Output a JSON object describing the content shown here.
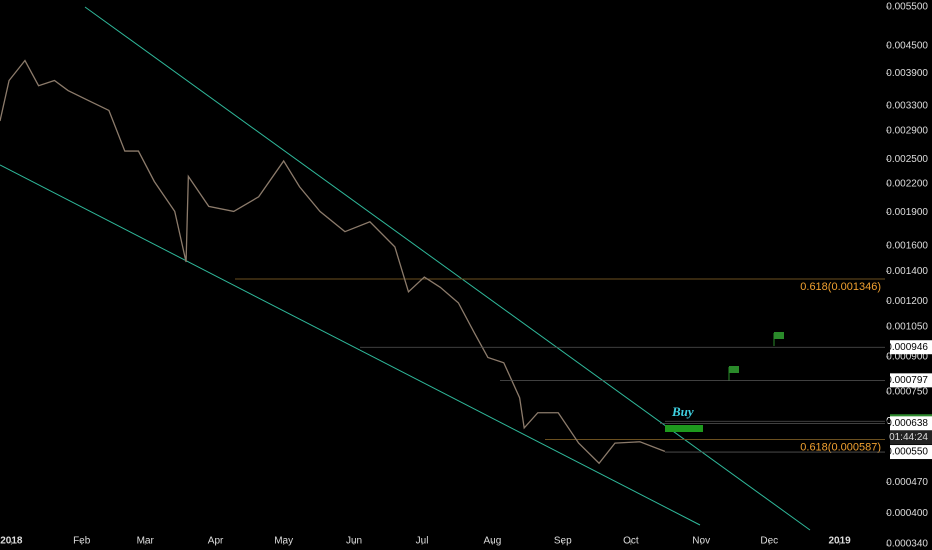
{
  "chart_data": {
    "type": "line",
    "log_scale": true,
    "xlim": [
      -5,
      385
    ],
    "ylim": [
      0.00034,
      0.0055
    ],
    "xticks": [
      {
        "value": 0,
        "label": "2018"
      },
      {
        "value": 31,
        "label": "Feb"
      },
      {
        "value": 59,
        "label": "Mar"
      },
      {
        "value": 90,
        "label": "Apr"
      },
      {
        "value": 120,
        "label": "May"
      },
      {
        "value": 151,
        "label": "Jun"
      },
      {
        "value": 181,
        "label": "Jul"
      },
      {
        "value": 212,
        "label": "Aug"
      },
      {
        "value": 243,
        "label": "Sep"
      },
      {
        "value": 273,
        "label": "Oct"
      },
      {
        "value": 304,
        "label": "Nov"
      },
      {
        "value": 334,
        "label": "Dec"
      },
      {
        "value": 365,
        "label": "2019"
      }
    ],
    "yticks": [
      {
        "value": 0.0055,
        "label": "0.005500"
      },
      {
        "value": 0.0045,
        "label": "0.004500"
      },
      {
        "value": 0.0039,
        "label": "0.003900"
      },
      {
        "value": 0.0033,
        "label": "0.003300"
      },
      {
        "value": 0.0029,
        "label": "0.002900"
      },
      {
        "value": 0.0025,
        "label": "0.002500"
      },
      {
        "value": 0.0022,
        "label": "0.002200"
      },
      {
        "value": 0.0019,
        "label": "0.001900"
      },
      {
        "value": 0.0016,
        "label": "0.001600"
      },
      {
        "value": 0.0014,
        "label": "0.001400"
      },
      {
        "value": 0.0012,
        "label": "0.001200"
      },
      {
        "value": 0.00105,
        "label": "0.001050"
      },
      {
        "value": 0.0009,
        "label": "0.000900"
      },
      {
        "value": 0.00075,
        "label": "0.000750"
      },
      {
        "value": 0.00047,
        "label": "0.000470"
      },
      {
        "value": 0.0004,
        "label": "0.000400"
      },
      {
        "value": 0.00034,
        "label": "0.000340"
      }
    ],
    "x": [
      -5,
      -1,
      6,
      12,
      19,
      25,
      34,
      43,
      50,
      56,
      63,
      72,
      77,
      78,
      87,
      98,
      109,
      120,
      127,
      136,
      147,
      158,
      169,
      175,
      182,
      189,
      197,
      204,
      210,
      217,
      224,
      226,
      232,
      241,
      250,
      259,
      266,
      277,
      288
    ],
    "series": [
      {
        "color": "#8c7b6b",
        "values": [
          0.00305,
          0.00376,
          0.00417,
          0.00366,
          0.00376,
          0.00357,
          0.00339,
          0.00322,
          0.00261,
          0.00261,
          0.00223,
          0.00191,
          0.00147,
          0.00229,
          0.00196,
          0.00191,
          0.00206,
          0.00248,
          0.00217,
          0.00191,
          0.00172,
          0.00181,
          0.00159,
          0.00126,
          0.00136,
          0.00129,
          0.00119,
          0.00102,
          0.000897,
          0.000873,
          0.000728,
          0.000623,
          0.000674,
          0.000674,
          0.000576,
          0.000519,
          0.000576,
          0.00058,
          0.000552
        ]
      }
    ],
    "levels": [
      {
        "value": 0.001346,
        "label": "0.618(0.001346)",
        "color": "#f0a030"
      },
      {
        "value": 0.000587,
        "label": "0.618(0.000587)",
        "color": "#f0a030"
      }
    ],
    "price_tags": [
      {
        "value": 0.000946,
        "label": "0.000946",
        "color": "#ffffff"
      },
      {
        "value": 0.000797,
        "label": "0.000797",
        "color": "#ffffff"
      },
      {
        "value": 0.000645,
        "label": "0.000645",
        "color": "#2e8b2e"
      },
      {
        "value": 0.000638,
        "label": "0.000638",
        "color": "#ffffff"
      },
      {
        "value": 0.00055,
        "label": "0.000550",
        "color": "#ffffff"
      }
    ],
    "countdown": "01:44:24",
    "buy_label": "Buy"
  }
}
